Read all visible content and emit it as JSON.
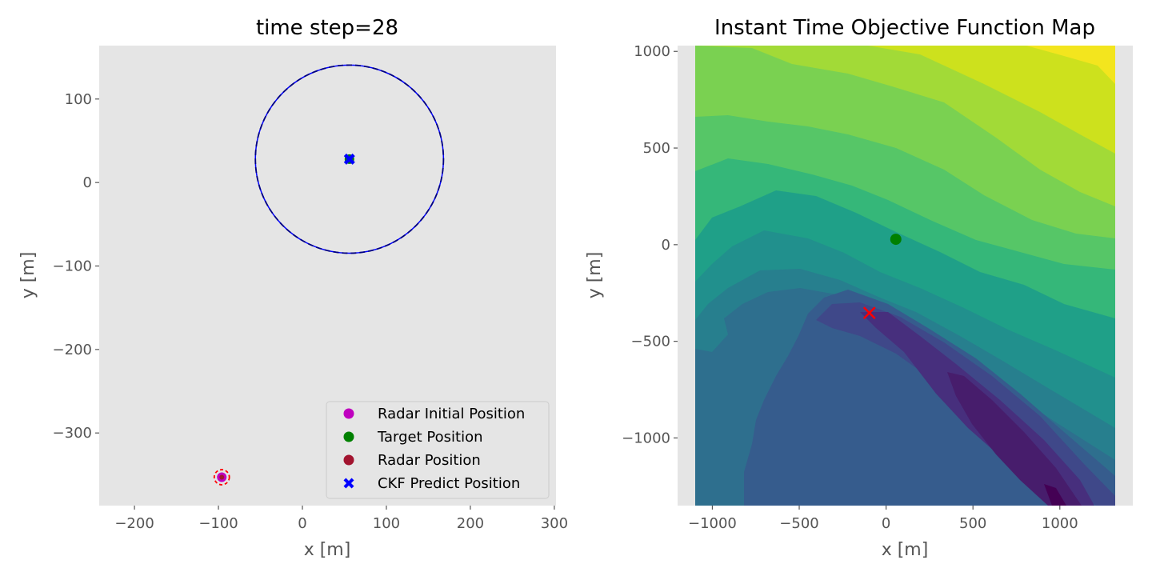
{
  "chart_data": [
    {
      "type": "scatter",
      "title": "time step=28",
      "xlabel": "x [m]",
      "ylabel": "y [m]",
      "xlim": [
        -242,
        302
      ],
      "ylim": [
        -387,
        164
      ],
      "xticks": [
        -200,
        -100,
        0,
        100,
        200,
        300
      ],
      "yticks": [
        -300,
        -200,
        -100,
        0,
        100
      ],
      "xtick_labels": [
        "−200",
        "−100",
        "0",
        "100",
        "200",
        "300"
      ],
      "ytick_labels": [
        "−300",
        "−200",
        "−100",
        "0",
        "100"
      ],
      "grid": false,
      "background": "#e5e5e5",
      "legend_position": "lower-right",
      "series": [
        {
          "name": "Radar Initial Position",
          "marker": "circle",
          "color": "#bf00bf",
          "points": [
            [
              -96,
              -353
            ]
          ]
        },
        {
          "name": "Target Position",
          "marker": "circle",
          "color": "#008000",
          "points": [
            [
              56,
              28
            ]
          ]
        },
        {
          "name": "Radar Position",
          "marker": "circle",
          "color": "#a2142f",
          "points": [
            [
              -96,
              -353
            ]
          ]
        },
        {
          "name": "CKF Predict Position",
          "marker": "x-filled",
          "color": "#0000ff",
          "points": [
            [
              56,
              28
            ]
          ]
        }
      ],
      "circles": [
        {
          "center": [
            56,
            28
          ],
          "radius": 112,
          "color": "#0000ff",
          "style": "solid"
        },
        {
          "center": [
            56,
            28
          ],
          "radius": 112,
          "color": "#000080",
          "style": "dashed"
        },
        {
          "center": [
            -96,
            -353
          ],
          "radius": 9,
          "color": "#ff0000",
          "style": "dashed"
        }
      ]
    },
    {
      "type": "contour",
      "title": "Instant Time Objective Function Map",
      "xlabel": "x [m]",
      "ylabel": "y [m]",
      "xlim": [
        -1200,
        1420
      ],
      "ylim": [
        -1350,
        1030
      ],
      "data_extent": {
        "x": [
          -1100,
          1060
        ],
        "y": [
          -1350,
          1030
        ]
      },
      "xticks": [
        -1000,
        -500,
        0,
        500,
        1000
      ],
      "yticks": [
        -1000,
        -500,
        0,
        500,
        1000
      ],
      "xtick_labels": [
        "−1000",
        "−500",
        "0",
        "500",
        "1000"
      ],
      "ytick_labels": [
        "−1000",
        "−500",
        "0",
        "500",
        "1000"
      ],
      "colormap": "viridis",
      "levels": 13,
      "background": "#e5e5e5",
      "markers": [
        {
          "label": "target",
          "marker": "circle",
          "color": "#008000",
          "point": [
            56,
            28
          ]
        },
        {
          "label": "optimum",
          "marker": "x",
          "color": "#ff0000",
          "point": [
            -96,
            -353
          ]
        }
      ]
    }
  ]
}
